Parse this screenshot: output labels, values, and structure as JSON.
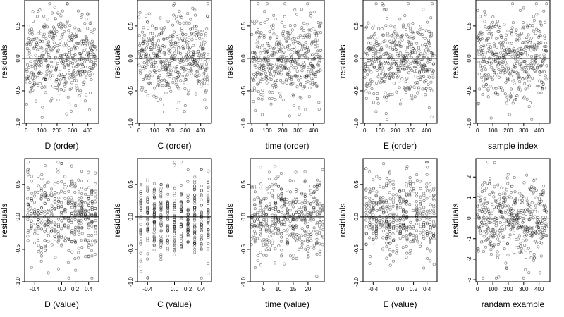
{
  "chart_data": [
    {
      "type": "scatter",
      "xlabel": "D (order)",
      "ylabel": "residuals",
      "xlim": [
        -10,
        470
      ],
      "ylim": [
        -1.0,
        0.9
      ],
      "xticks": [
        "0",
        "100",
        "200",
        "300",
        "400"
      ],
      "xtick_values": [
        0,
        100,
        200,
        300,
        400
      ],
      "yticks": [
        "-1.0",
        "-0.5",
        "0.0",
        "0.5"
      ],
      "ytick_values": [
        -1.0,
        -0.5,
        0.0,
        0.5
      ],
      "hline": 0,
      "marker": "open-circle",
      "x_mode": "order",
      "n": 450,
      "spread": 0.32,
      "seed": 11
    },
    {
      "type": "scatter",
      "xlabel": "C (order)",
      "ylabel": "residuals",
      "xlim": [
        -10,
        470
      ],
      "ylim": [
        -1.0,
        0.9
      ],
      "xticks": [
        "0",
        "100",
        "200",
        "300",
        "400"
      ],
      "xtick_values": [
        0,
        100,
        200,
        300,
        400
      ],
      "yticks": [
        "-1.0",
        "-0.5",
        "0.0",
        "0.5"
      ],
      "ytick_values": [
        -1.0,
        -0.5,
        0.0,
        0.5
      ],
      "hline": 0,
      "marker": "open-circle",
      "x_mode": "order",
      "n": 450,
      "spread": 0.32,
      "seed": 23
    },
    {
      "type": "scatter",
      "xlabel": "time (order)",
      "ylabel": "residuals",
      "xlim": [
        -10,
        470
      ],
      "ylim": [
        -1.0,
        0.9
      ],
      "xticks": [
        "0",
        "100",
        "200",
        "300",
        "400"
      ],
      "xtick_values": [
        0,
        100,
        200,
        300,
        400
      ],
      "yticks": [
        "-1.0",
        "-0.5",
        "0.0",
        "0.5"
      ],
      "ytick_values": [
        -1.0,
        -0.5,
        0.0,
        0.5
      ],
      "hline": 0,
      "marker": "open-circle",
      "x_mode": "order",
      "n": 450,
      "spread": 0.32,
      "seed": 37
    },
    {
      "type": "scatter",
      "xlabel": "E (order)",
      "ylabel": "residuals",
      "xlim": [
        -10,
        470
      ],
      "ylim": [
        -1.0,
        0.9
      ],
      "xticks": [
        "0",
        "100",
        "200",
        "300",
        "400"
      ],
      "xtick_values": [
        0,
        100,
        200,
        300,
        400
      ],
      "yticks": [
        "-1.0",
        "-0.5",
        "0.0",
        "0.5"
      ],
      "ytick_values": [
        -1.0,
        -0.5,
        0.0,
        0.5
      ],
      "hline": 0,
      "marker": "open-circle",
      "x_mode": "order",
      "n": 450,
      "spread": 0.32,
      "seed": 41
    },
    {
      "type": "scatter",
      "xlabel": "sample index",
      "ylabel": "residuals",
      "xlim": [
        -10,
        470
      ],
      "ylim": [
        -1.0,
        0.9
      ],
      "xticks": [
        "0",
        "100",
        "200",
        "300",
        "400"
      ],
      "xtick_values": [
        0,
        100,
        200,
        300,
        400
      ],
      "yticks": [
        "-1.0",
        "-0.5",
        "0.0",
        "0.5"
      ],
      "ytick_values": [
        -1.0,
        -0.5,
        0.0,
        0.5
      ],
      "hline": 0,
      "marker": "open-circle",
      "x_mode": "order",
      "n": 450,
      "spread": 0.32,
      "seed": 53
    },
    {
      "type": "scatter",
      "xlabel": "D (value)",
      "ylabel": "residuals",
      "xlim": [
        -0.55,
        0.55
      ],
      "ylim": [
        -1.0,
        0.9
      ],
      "xticks": [
        "-0.4",
        "0.0",
        "0.2",
        "0.4"
      ],
      "xtick_values": [
        -0.4,
        0.0,
        0.2,
        0.4
      ],
      "yticks": [
        "-1.0",
        "-0.5",
        "0.0",
        "0.5"
      ],
      "ytick_values": [
        -1.0,
        -0.5,
        0.0,
        0.5
      ],
      "hline": 0,
      "marker": "open-circle",
      "x_mode": "discrete",
      "x_levels": [
        -0.5,
        -0.45,
        -0.4,
        -0.35,
        -0.3,
        -0.25,
        -0.2,
        -0.15,
        -0.1,
        -0.05,
        0.0,
        0.05,
        0.1,
        0.15,
        0.2,
        0.25,
        0.3,
        0.35,
        0.4,
        0.45,
        0.5
      ],
      "x_jitter": 0.006,
      "n": 450,
      "spread": 0.32,
      "seed": 61
    },
    {
      "type": "scatter",
      "xlabel": "C (value)",
      "ylabel": "residuals",
      "xlim": [
        -0.55,
        0.55
      ],
      "ylim": [
        -1.0,
        0.9
      ],
      "xticks": [
        "-0.4",
        "0.0",
        "0.2",
        "0.4"
      ],
      "xtick_values": [
        -0.4,
        0.0,
        0.2,
        0.4
      ],
      "yticks": [
        "-1.0",
        "-0.5",
        "0.0",
        "0.5"
      ],
      "ytick_values": [
        -1.0,
        -0.5,
        0.0,
        0.5
      ],
      "hline": 0,
      "marker": "open-circle",
      "x_mode": "discrete",
      "x_levels": [
        -0.5,
        -0.4,
        -0.3,
        -0.2,
        -0.1,
        0.0,
        0.1,
        0.2,
        0.3,
        0.4,
        0.5
      ],
      "x_jitter": 0.003,
      "n": 450,
      "spread": 0.32,
      "seed": 71
    },
    {
      "type": "scatter",
      "xlabel": "time (value)",
      "ylabel": "residuals",
      "xlim": [
        0.5,
        25.5
      ],
      "ylim": [
        -1.0,
        0.9
      ],
      "xticks": [
        "5",
        "10",
        "15",
        "20"
      ],
      "xtick_values": [
        5,
        10,
        15,
        20
      ],
      "yticks": [
        "-1.0",
        "-0.5",
        "0.0",
        "0.5"
      ],
      "ytick_values": [
        -1.0,
        -0.5,
        0.0,
        0.5
      ],
      "hline": 0,
      "marker": "open-circle",
      "x_mode": "discrete",
      "x_levels": [
        1,
        2,
        3,
        4,
        5,
        6,
        7,
        8,
        9,
        10,
        11,
        12,
        13,
        14,
        15,
        16,
        17,
        18,
        19,
        20,
        21,
        22,
        23,
        24,
        25
      ],
      "x_jitter": 0.15,
      "n": 450,
      "spread": 0.32,
      "seed": 83
    },
    {
      "type": "scatter",
      "xlabel": "E (value)",
      "ylabel": "residuals",
      "xlim": [
        -0.55,
        0.55
      ],
      "ylim": [
        -1.0,
        0.9
      ],
      "xticks": [
        "-0.4",
        "0.0",
        "0.2",
        "0.4"
      ],
      "xtick_values": [
        -0.4,
        0.0,
        0.2,
        0.4
      ],
      "yticks": [
        "-1.0",
        "-0.5",
        "0.0",
        "0.5"
      ],
      "ytick_values": [
        -1.0,
        -0.5,
        0.0,
        0.5
      ],
      "hline": 0,
      "marker": "open-circle",
      "x_mode": "discrete",
      "x_levels": [
        -0.5,
        -0.45,
        -0.4,
        -0.35,
        -0.3,
        -0.25,
        -0.2,
        -0.15,
        -0.1,
        -0.05,
        0.0,
        0.05,
        0.1,
        0.15,
        0.2,
        0.25,
        0.3,
        0.35,
        0.4,
        0.45,
        0.5
      ],
      "x_jitter": 0.006,
      "n": 450,
      "spread": 0.32,
      "seed": 97
    },
    {
      "type": "scatter",
      "xlabel": "randam example",
      "ylabel": "residuals",
      "xlim": [
        -10,
        470
      ],
      "ylim": [
        -3.1,
        2.9
      ],
      "xticks": [
        "0",
        "100",
        "200",
        "300",
        "400"
      ],
      "xtick_values": [
        0,
        100,
        200,
        300,
        400
      ],
      "yticks": [
        "-3",
        "-2",
        "-1",
        "0",
        "1",
        "2"
      ],
      "ytick_values": [
        -3,
        -2,
        -1,
        0,
        1,
        2
      ],
      "hline": 0,
      "marker": "open-circle",
      "x_mode": "order",
      "n": 450,
      "spread": 1.0,
      "seed": 109
    }
  ]
}
